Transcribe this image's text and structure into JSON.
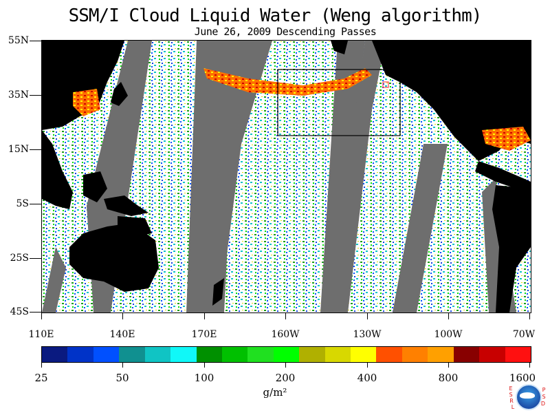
{
  "title": "SSM/I Cloud Liquid Water (Weng algorithm)",
  "subtitle": "June 26, 2009  Descending Passes",
  "y_axis_labels": [
    "55N",
    "35N",
    "15N",
    "5S",
    "25S",
    "45S"
  ],
  "x_axis_labels": [
    "110E",
    "140E",
    "170E",
    "160W",
    "130W",
    "100W",
    "70W"
  ],
  "colorbar": {
    "colors": [
      "#0a1a80",
      "#0033c8",
      "#0050ff",
      "#109090",
      "#10c4c4",
      "#10f8f8",
      "#009000",
      "#00c000",
      "#20e020",
      "#00ff00",
      "#b0b000",
      "#d8d800",
      "#ffff00",
      "#ff5000",
      "#ff8000",
      "#ffa000",
      "#880000",
      "#c80000",
      "#ff1010"
    ],
    "tick_labels": [
      "25",
      "50",
      "100",
      "200",
      "400",
      "800",
      "1600"
    ],
    "units": "g/m²"
  },
  "logo": {
    "name": "noaa-logo",
    "left_letters": [
      "E",
      "S",
      "R",
      "L"
    ],
    "right_letters": [
      "P",
      "S",
      "D"
    ]
  },
  "colors": {
    "land": "#000000",
    "missing_swath": "#6e6e6e",
    "background": "#ffffff"
  }
}
